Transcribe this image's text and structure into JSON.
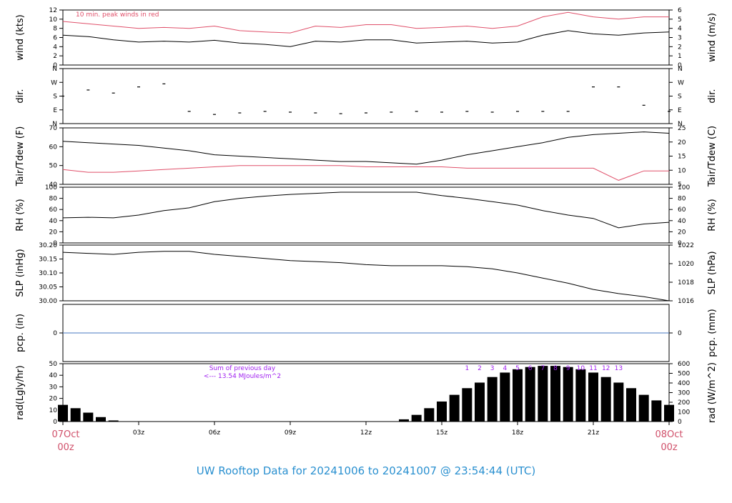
{
  "title": "UW Rooftop Data for 20241006  to  20241007 @ 23:54:44  (UTC)",
  "colors": {
    "black": "#000000",
    "red": "#e0506a",
    "blue": "#4a78c0",
    "purple": "#a020f0",
    "title": "#2a90d0"
  },
  "time_axis": {
    "ticks": [
      "03z",
      "06z",
      "09z",
      "12z",
      "15z",
      "18z",
      "21z"
    ],
    "start_label": [
      "07Oct",
      "00z"
    ],
    "end_label": [
      "08Oct",
      "00z"
    ]
  },
  "chart_data": [
    {
      "type": "line",
      "ylabel": "wind (kts)",
      "ylabel_right": "wind (m/s)",
      "ylim": [
        0,
        12
      ],
      "yticks": [
        "0",
        "2",
        "4",
        "6",
        "8",
        "10",
        "12"
      ],
      "yticks_right": [
        "0",
        "1",
        "2",
        "3",
        "4",
        "5",
        "6"
      ],
      "annotation": "10 min. peak winds in red",
      "x": [
        0,
        1,
        2,
        3,
        4,
        5,
        6,
        7,
        8,
        9,
        10,
        11,
        12,
        13,
        14,
        15,
        16,
        17,
        18,
        19,
        20,
        21,
        22,
        23,
        24
      ],
      "series": [
        {
          "values": [
            6.5,
            6.2,
            5.5,
            5.0,
            5.2,
            5.0,
            5.4,
            4.8,
            4.5,
            4.0,
            5.2,
            5.0,
            5.5,
            5.5,
            4.8,
            5.0,
            5.2,
            4.8,
            5.0,
            6.5,
            7.5,
            6.8,
            6.5,
            7.0,
            7.2
          ],
          "color": "#000000"
        },
        {
          "values": [
            9.5,
            9.0,
            8.5,
            8.0,
            8.2,
            8.0,
            8.5,
            7.5,
            7.2,
            7.0,
            8.5,
            8.2,
            8.8,
            8.8,
            8.0,
            8.2,
            8.5,
            8.0,
            8.5,
            10.5,
            11.5,
            10.5,
            10.0,
            10.5,
            10.5
          ],
          "color": "#e0506a"
        }
      ]
    },
    {
      "type": "scatter",
      "ylabel": "dir.",
      "ylabel_right": "dir.",
      "ylim": [
        0,
        360
      ],
      "yticks": [
        "N",
        "E",
        "S",
        "W",
        "N"
      ],
      "yticks_right": [
        "N",
        "E",
        "S",
        "W",
        "N"
      ],
      "x": [
        0,
        1,
        2,
        3,
        4,
        5,
        6,
        7,
        8,
        9,
        10,
        11,
        12,
        13,
        14,
        15,
        16,
        17,
        18,
        19,
        20,
        21,
        22,
        23,
        24
      ],
      "series": [
        {
          "values": [
            180,
            220,
            200,
            240,
            260,
            80,
            60,
            70,
            80,
            75,
            70,
            65,
            70,
            75,
            80,
            75,
            80,
            75,
            80,
            80,
            80,
            240,
            240,
            120,
            80
          ],
          "color": "#000000"
        }
      ]
    },
    {
      "type": "line",
      "ylabel": "Tair/Tdew (F)",
      "ylabel_right": "Tair/Tdew (C)",
      "ylim": [
        37,
        79
      ],
      "yticks": [
        "40",
        "50",
        "60",
        "70"
      ],
      "yticks_right": [
        "5",
        "10",
        "15",
        "20",
        "25"
      ],
      "x": [
        0,
        1,
        2,
        3,
        4,
        5,
        6,
        7,
        8,
        9,
        10,
        11,
        12,
        13,
        14,
        15,
        16,
        17,
        18,
        19,
        20,
        21,
        22,
        23,
        24
      ],
      "series": [
        {
          "values": [
            69,
            68,
            67,
            66,
            64,
            62,
            59,
            58,
            57,
            56,
            55,
            54,
            54,
            53,
            52,
            55,
            59,
            62,
            65,
            68,
            72,
            74,
            75,
            76,
            75
          ],
          "color": "#000000"
        },
        {
          "values": [
            48,
            46,
            46,
            47,
            48,
            49,
            50,
            51,
            51,
            51,
            51,
            51,
            50,
            50,
            50,
            50,
            49,
            49,
            49,
            49,
            49,
            49,
            40,
            47,
            47
          ],
          "color": "#e0506a"
        }
      ]
    },
    {
      "type": "line",
      "ylabel": "RH (%)",
      "ylabel_right": "RH (%)",
      "ylim": [
        0,
        100
      ],
      "yticks": [
        "0",
        "20",
        "40",
        "60",
        "80",
        "100"
      ],
      "yticks_right": [
        "0",
        "20",
        "40",
        "60",
        "80",
        "100"
      ],
      "x": [
        0,
        1,
        2,
        3,
        4,
        5,
        6,
        7,
        8,
        9,
        10,
        11,
        12,
        13,
        14,
        15,
        16,
        17,
        18,
        19,
        20,
        21,
        22,
        23,
        24
      ],
      "series": [
        {
          "values": [
            45,
            46,
            45,
            50,
            58,
            63,
            74,
            80,
            84,
            87,
            89,
            91,
            91,
            91,
            91,
            85,
            80,
            74,
            68,
            58,
            50,
            44,
            27,
            34,
            37
          ],
          "color": "#000000"
        }
      ]
    },
    {
      "type": "line",
      "ylabel": "SLP (inHg)",
      "ylabel_right": "SLP (hPa)",
      "ylim": [
        29.965,
        30.235
      ],
      "yticks": [
        "30.00",
        "30.05",
        "30.10",
        "30.15",
        "30.20"
      ],
      "yticks_right": [
        "1016",
        "1018",
        "1020",
        "1022"
      ],
      "x": [
        0,
        1,
        2,
        3,
        4,
        5,
        6,
        7,
        8,
        9,
        10,
        11,
        12,
        13,
        14,
        15,
        16,
        17,
        18,
        19,
        20,
        21,
        22,
        23,
        24
      ],
      "series": [
        {
          "values": [
            30.2,
            30.195,
            30.19,
            30.2,
            30.205,
            30.205,
            30.19,
            30.18,
            30.17,
            30.16,
            30.155,
            30.15,
            30.14,
            30.135,
            30.135,
            30.135,
            30.13,
            30.12,
            30.1,
            30.075,
            30.05,
            30.02,
            30.0,
            29.985,
            29.965
          ],
          "color": "#000000"
        }
      ]
    },
    {
      "type": "line",
      "ylabel": "pcp. (in)",
      "ylabel_right": "pcp. (mm)",
      "ylim": [
        -1,
        1
      ],
      "yticks": [
        "0"
      ],
      "yticks_right": [
        "0"
      ],
      "x": [
        0,
        24
      ],
      "series": [
        {
          "values": [
            0,
            0
          ],
          "color": "#4a78c0"
        }
      ]
    },
    {
      "type": "bar",
      "ylabel": "rad(Lgly/hr)",
      "ylabel_right": "rad (W/m^2)",
      "ylim": [
        0,
        52
      ],
      "yticks": [
        "0",
        "10",
        "20",
        "30",
        "40",
        "50"
      ],
      "yticks_right": [
        "0",
        "100",
        "200",
        "300",
        "400",
        "500",
        "600"
      ],
      "annotation_lines": [
        "Sum of previous day",
        "<--- 13.54 MJoules/m^2"
      ],
      "hour_labels": [
        "1",
        "2",
        "3",
        "4",
        "5",
        "6",
        "7",
        "8",
        "9",
        "10",
        "11",
        "12",
        "13"
      ],
      "x": [
        0,
        0.5,
        1,
        1.5,
        2,
        2.5,
        13,
        13.5,
        14,
        14.5,
        15,
        15.5,
        16,
        16.5,
        17,
        17.5,
        18,
        18.5,
        19,
        19.5,
        20,
        20.5,
        21,
        21.5,
        22,
        22.5,
        23,
        23.5,
        24
      ],
      "values": [
        15,
        12,
        8,
        4,
        1,
        0,
        0,
        2,
        6,
        12,
        18,
        24,
        30,
        35,
        40,
        44,
        47,
        49,
        50,
        50,
        49,
        47,
        44,
        40,
        35,
        30,
        24,
        19,
        15
      ]
    }
  ]
}
